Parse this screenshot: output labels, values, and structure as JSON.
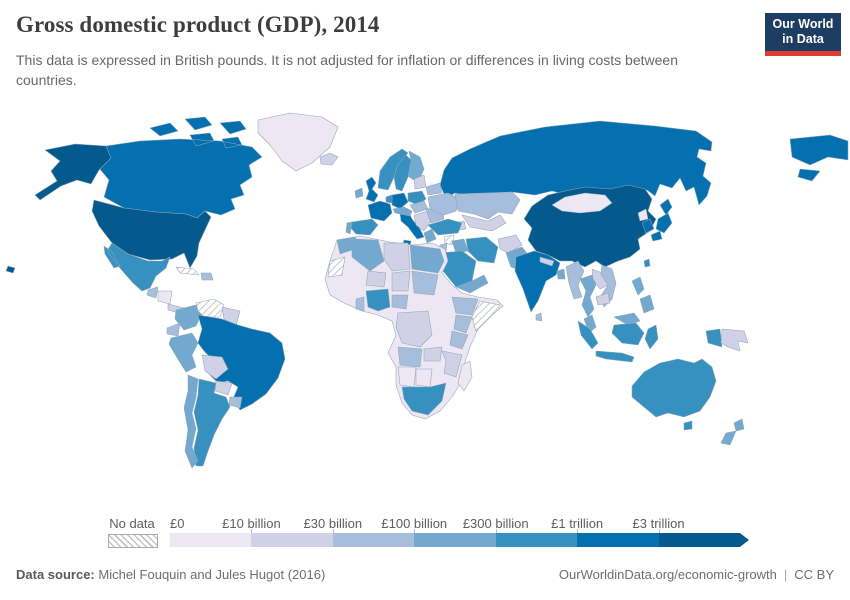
{
  "header": {
    "title": "Gross domestic product (GDP), 2014",
    "subtitle": "This data is expressed in British pounds. It is not adjusted for inflation or differences in living costs between countries.",
    "logo": {
      "line1": "Our World",
      "line2": "in Data",
      "bg_color": "#1d3d63",
      "stripe_color": "#dc3e32"
    }
  },
  "chart_data": {
    "type": "choropleth_world_map",
    "title": "Gross domestic product (GDP), 2014",
    "year": 2014,
    "unit": "British pounds (£)",
    "legend": {
      "no_data_label": "No data",
      "tick_labels": [
        "£0",
        "£10 billion",
        "£30 billion",
        "£100 billion",
        "£300 billion",
        "£1 trillion",
        "£3 trillion"
      ],
      "bin_colors": [
        "#ece7f2",
        "#d0d1e6",
        "#a6bddb",
        "#74a9cf",
        "#3690c0",
        "#0570b0",
        "#045a8d"
      ],
      "no_data_stroke": "#b3b3b3",
      "arrow_end": true
    },
    "regions": [
      {
        "id": "russia",
        "name": "Russia",
        "bin": 5
      },
      {
        "id": "canada",
        "name": "Canada",
        "bin": 5
      },
      {
        "id": "greenland",
        "name": "Greenland",
        "bin": 0
      },
      {
        "id": "united-states",
        "name": "United States",
        "bin": 6
      },
      {
        "id": "mexico",
        "name": "Mexico",
        "bin": 4
      },
      {
        "id": "guatemala",
        "name": "Guatemala",
        "bin": 2
      },
      {
        "id": "honduras-nicaragua",
        "name": "Honduras & Nicaragua",
        "bin": 0
      },
      {
        "id": "costa-rica-panama",
        "name": "Costa Rica & Panama",
        "bin": 1
      },
      {
        "id": "cuba",
        "name": "Cuba",
        "bin": "no-data"
      },
      {
        "id": "hispaniola",
        "name": "Haiti & Dominican Republic",
        "bin": 2
      },
      {
        "id": "colombia",
        "name": "Colombia",
        "bin": 3
      },
      {
        "id": "venezuela",
        "name": "Venezuela",
        "bin": "no-data"
      },
      {
        "id": "guyanas",
        "name": "Guyana & Suriname",
        "bin": 1
      },
      {
        "id": "ecuador",
        "name": "Ecuador",
        "bin": 2
      },
      {
        "id": "peru",
        "name": "Peru",
        "bin": 3
      },
      {
        "id": "brazil",
        "name": "Brazil",
        "bin": 5
      },
      {
        "id": "bolivia",
        "name": "Bolivia",
        "bin": 1
      },
      {
        "id": "paraguay",
        "name": "Paraguay",
        "bin": 1
      },
      {
        "id": "uruguay",
        "name": "Uruguay",
        "bin": 2
      },
      {
        "id": "argentina",
        "name": "Argentina",
        "bin": 4
      },
      {
        "id": "chile",
        "name": "Chile",
        "bin": 3
      },
      {
        "id": "iceland",
        "name": "Iceland",
        "bin": 1
      },
      {
        "id": "united-kingdom",
        "name": "United Kingdom",
        "bin": 5
      },
      {
        "id": "ireland",
        "name": "Ireland",
        "bin": 3
      },
      {
        "id": "norway",
        "name": "Norway",
        "bin": 4
      },
      {
        "id": "sweden",
        "name": "Sweden",
        "bin": 4
      },
      {
        "id": "finland",
        "name": "Finland",
        "bin": 3
      },
      {
        "id": "denmark",
        "name": "Denmark",
        "bin": 3
      },
      {
        "id": "germany",
        "name": "Germany",
        "bin": 5
      },
      {
        "id": "benelux",
        "name": "Netherlands & Belgium",
        "bin": 4
      },
      {
        "id": "france",
        "name": "France",
        "bin": 5
      },
      {
        "id": "spain",
        "name": "Spain",
        "bin": 4
      },
      {
        "id": "portugal",
        "name": "Portugal",
        "bin": 3
      },
      {
        "id": "italy",
        "name": "Italy",
        "bin": 5
      },
      {
        "id": "switzerland-austria",
        "name": "Switzerland & Austria",
        "bin": 3
      },
      {
        "id": "poland",
        "name": "Poland",
        "bin": 4
      },
      {
        "id": "czechia-hungary",
        "name": "Czechia, Slovakia & Hungary",
        "bin": 2
      },
      {
        "id": "balkans",
        "name": "Balkans",
        "bin": 1
      },
      {
        "id": "greece",
        "name": "Greece",
        "bin": 3
      },
      {
        "id": "romania-bulgaria",
        "name": "Romania & Bulgaria",
        "bin": 2
      },
      {
        "id": "baltics",
        "name": "Baltic states",
        "bin": 1
      },
      {
        "id": "belarus",
        "name": "Belarus",
        "bin": 2
      },
      {
        "id": "ukraine",
        "name": "Ukraine",
        "bin": 2
      },
      {
        "id": "kazakhstan",
        "name": "Kazakhstan",
        "bin": 2
      },
      {
        "id": "central-asia",
        "name": "Uzbekistan & Turkmenistan",
        "bin": 1
      },
      {
        "id": "caucasus",
        "name": "Caucasus",
        "bin": 1
      },
      {
        "id": "turkey",
        "name": "Turkey",
        "bin": 4
      },
      {
        "id": "syria",
        "name": "Syria",
        "bin": "no-data"
      },
      {
        "id": "iraq",
        "name": "Iraq",
        "bin": 3
      },
      {
        "id": "iran",
        "name": "Iran",
        "bin": 4
      },
      {
        "id": "israel-jordan",
        "name": "Israel & Jordan",
        "bin": 2
      },
      {
        "id": "saudi-arabia",
        "name": "Saudi Arabia",
        "bin": 4
      },
      {
        "id": "yemen-oman",
        "name": "Yemen & Oman",
        "bin": 3
      },
      {
        "id": "afghanistan",
        "name": "Afghanistan",
        "bin": 1
      },
      {
        "id": "pakistan",
        "name": "Pakistan",
        "bin": 3
      },
      {
        "id": "india",
        "name": "India",
        "bin": 5
      },
      {
        "id": "nepal",
        "name": "Nepal",
        "bin": 1
      },
      {
        "id": "bangladesh",
        "name": "Bangladesh",
        "bin": 3
      },
      {
        "id": "sri-lanka",
        "name": "Sri Lanka",
        "bin": 2
      },
      {
        "id": "china",
        "name": "China",
        "bin": 6
      },
      {
        "id": "mongolia",
        "name": "Mongolia",
        "bin": 0
      },
      {
        "id": "north-korea",
        "name": "North Korea",
        "bin": 0
      },
      {
        "id": "south-korea",
        "name": "South Korea",
        "bin": 5
      },
      {
        "id": "japan",
        "name": "Japan",
        "bin": 5
      },
      {
        "id": "taiwan",
        "name": "Taiwan",
        "bin": 4
      },
      {
        "id": "myanmar",
        "name": "Myanmar",
        "bin": 2
      },
      {
        "id": "thailand",
        "name": "Thailand",
        "bin": 3
      },
      {
        "id": "laos",
        "name": "Laos",
        "bin": 1
      },
      {
        "id": "vietnam",
        "name": "Vietnam",
        "bin": 2
      },
      {
        "id": "cambodia",
        "name": "Cambodia",
        "bin": 1
      },
      {
        "id": "malaysia",
        "name": "Malaysia",
        "bin": 3
      },
      {
        "id": "philippines",
        "name": "Philippines",
        "bin": 3
      },
      {
        "id": "indonesia",
        "name": "Indonesia",
        "bin": 4
      },
      {
        "id": "papua-new-guinea",
        "name": "Papua New Guinea",
        "bin": 1
      },
      {
        "id": "australia",
        "name": "Australia",
        "bin": 4
      },
      {
        "id": "new-zealand",
        "name": "New Zealand",
        "bin": 3
      },
      {
        "id": "africa-other",
        "name": "Africa (other countries)",
        "bin": 0
      },
      {
        "id": "morocco",
        "name": "Morocco",
        "bin": 3
      },
      {
        "id": "western-sahara",
        "name": "Western Sahara",
        "bin": "no-data"
      },
      {
        "id": "algeria",
        "name": "Algeria",
        "bin": 3
      },
      {
        "id": "libya",
        "name": "Libya",
        "bin": 1
      },
      {
        "id": "egypt",
        "name": "Egypt",
        "bin": 3
      },
      {
        "id": "niger",
        "name": "Niger",
        "bin": 1
      },
      {
        "id": "chad",
        "name": "Chad",
        "bin": 1
      },
      {
        "id": "sudan",
        "name": "Sudan",
        "bin": 2
      },
      {
        "id": "ethiopia",
        "name": "Ethiopia",
        "bin": 2
      },
      {
        "id": "somalia",
        "name": "Somalia",
        "bin": "no-data"
      },
      {
        "id": "kenya",
        "name": "Kenya",
        "bin": 2
      },
      {
        "id": "tanzania",
        "name": "Tanzania",
        "bin": 2
      },
      {
        "id": "nigeria",
        "name": "Nigeria",
        "bin": 4
      },
      {
        "id": "ghana",
        "name": "Ghana",
        "bin": 2
      },
      {
        "id": "cameroon",
        "name": "Cameroon",
        "bin": 2
      },
      {
        "id": "dr-congo",
        "name": "Democratic Republic of Congo",
        "bin": 1
      },
      {
        "id": "angola",
        "name": "Angola",
        "bin": 2
      },
      {
        "id": "zambia",
        "name": "Zambia",
        "bin": 1
      },
      {
        "id": "mozambique-zimbabwe",
        "name": "Mozambique & Zimbabwe",
        "bin": 1
      },
      {
        "id": "namibia",
        "name": "Namibia",
        "bin": 0
      },
      {
        "id": "botswana",
        "name": "Botswana",
        "bin": 0
      },
      {
        "id": "south-africa",
        "name": "South Africa",
        "bin": 4
      },
      {
        "id": "madagascar",
        "name": "Madagascar",
        "bin": 0
      }
    ]
  },
  "footer": {
    "source_label": "Data source:",
    "source_text": "Michel Fouquin and Jules Hugot (2016)",
    "url": "OurWorldinData.org/economic-growth",
    "separator": "|",
    "license": "CC BY"
  }
}
